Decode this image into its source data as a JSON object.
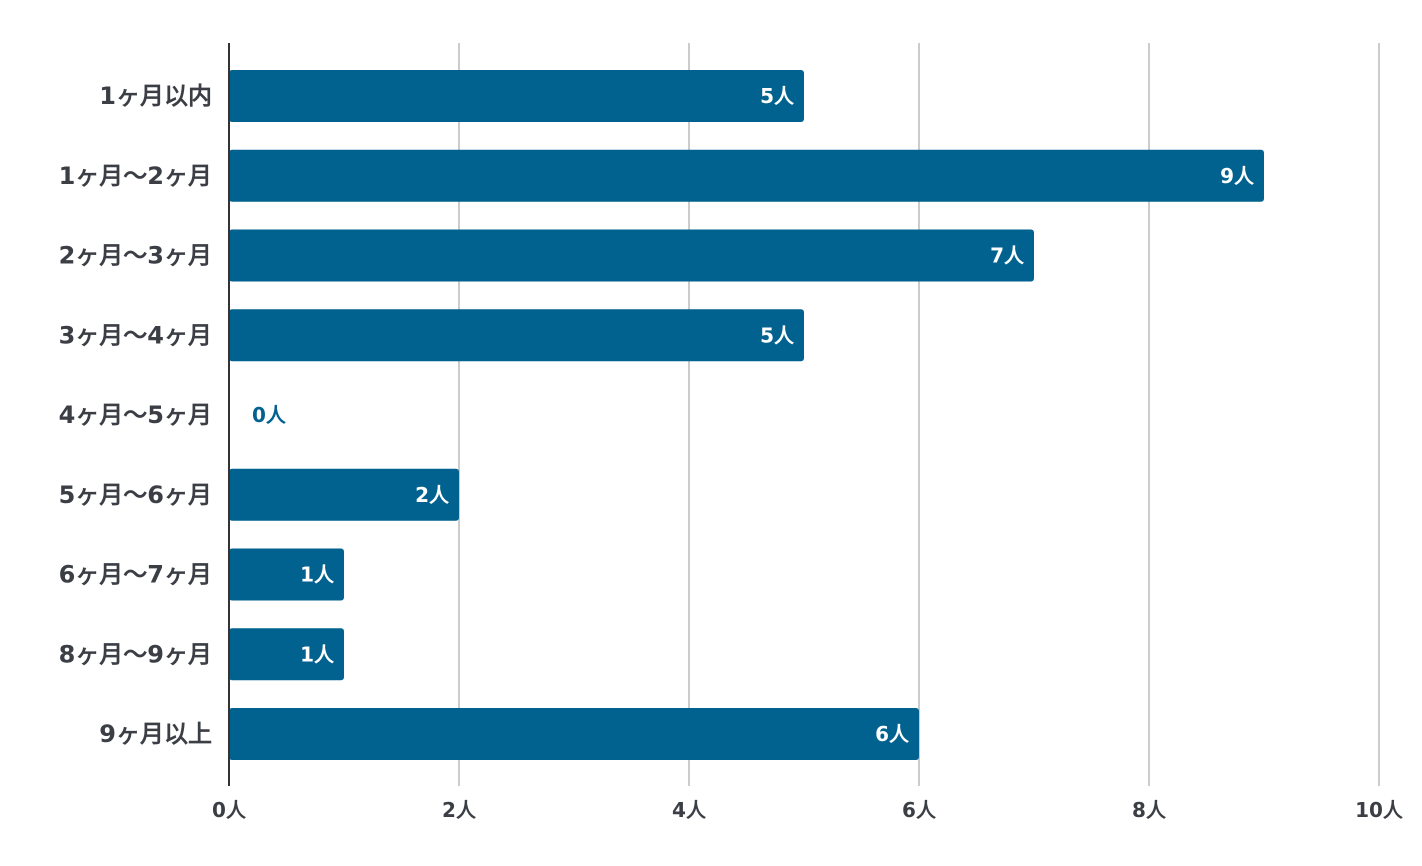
{
  "chart_data": {
    "type": "bar",
    "orientation": "horizontal",
    "title": "",
    "xlabel": "",
    "ylabel": "",
    "categories": [
      "1ヶ月以内",
      "1ヶ月〜2ヶ月",
      "2ヶ月〜3ヶ月",
      "3ヶ月〜4ヶ月",
      "4ヶ月〜5ヶ月",
      "5ヶ月〜6ヶ月",
      "6ヶ月〜7ヶ月",
      "8ヶ月〜9ヶ月",
      "9ヶ月以上"
    ],
    "values": [
      5,
      9,
      7,
      5,
      0,
      2,
      1,
      1,
      6
    ],
    "value_labels": [
      "5人",
      "9人",
      "7人",
      "5人",
      "0人",
      "2人",
      "1人",
      "1人",
      "6人"
    ],
    "xlim": [
      0,
      10
    ],
    "x_ticks": [
      0,
      2,
      4,
      6,
      8,
      10
    ],
    "x_tick_labels": [
      "0人",
      "2人",
      "4人",
      "6人",
      "8人",
      "10人"
    ],
    "grid": true,
    "legend": "none",
    "bar_color": "#02628f",
    "grid_color": "#cccccc",
    "axis_color": "#333333",
    "label_inside_color": "#ffffff",
    "label_outside_color": "#02628f"
  }
}
